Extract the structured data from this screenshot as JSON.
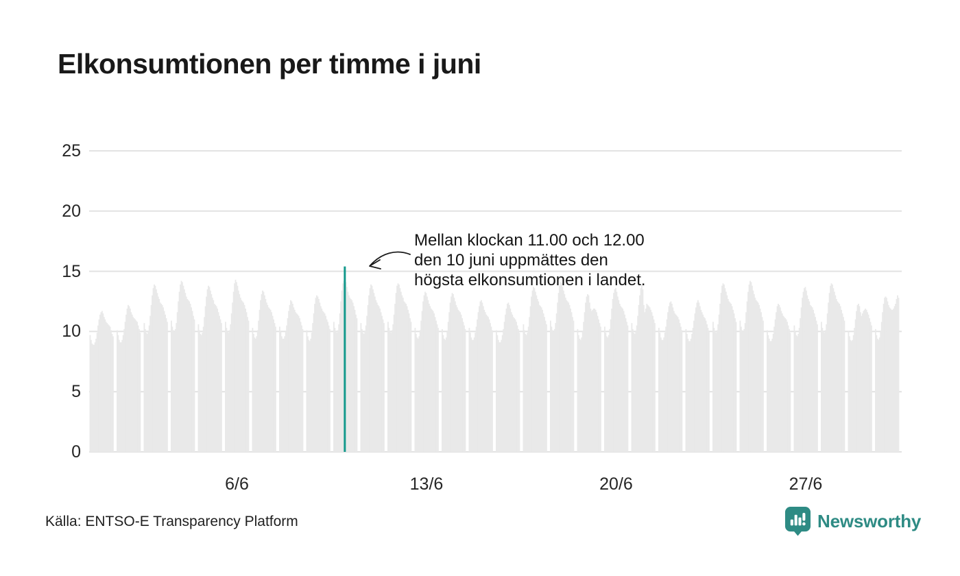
{
  "title": "Elkonsumtionen per timme i juni",
  "annotation": {
    "lines": [
      "Mellan klockan 11.00 och 12.00",
      "den 10 juni uppmättes den",
      "högsta elkonsumtionen i landet."
    ]
  },
  "source": "Källa: ENTSO-E Transparency Platform",
  "brand": {
    "name": "Newsworthy"
  },
  "colors": {
    "bar": "#e9e9e9",
    "grid": "#e2e2e2",
    "highlight": "#13998c",
    "brand_teal": "#2e8b84",
    "text": "#1a1a1a"
  },
  "chart_data": {
    "type": "bar",
    "title": "Elkonsumtionen per timme i juni",
    "xlabel": "",
    "ylabel": "",
    "ylim": [
      0,
      25
    ],
    "y_ticks": [
      0,
      5,
      10,
      15,
      20,
      25
    ],
    "x_ticks": [
      {
        "label": "6/6",
        "day": 6
      },
      {
        "label": "13/6",
        "day": 13
      },
      {
        "label": "20/6",
        "day": 20
      },
      {
        "label": "27/6",
        "day": 27
      }
    ],
    "n_days": 30,
    "hours_per_day": 24,
    "grid": true,
    "legend": false,
    "highlight": {
      "date": "10/6",
      "hour_index": 11,
      "day_index": 9,
      "hour_label": "11.00–12.00",
      "value": 15.4
    },
    "days": [
      {
        "date": "1/6",
        "values": [
          9.7,
          9.3,
          9.0,
          8.9,
          8.9,
          9.1,
          9.4,
          9.9,
          10.5,
          11.0,
          11.4,
          11.6,
          11.7,
          11.5,
          11.2,
          11.0,
          10.8,
          10.7,
          10.6,
          10.5,
          10.4,
          10.1,
          9.8,
          9.6
        ]
      },
      {
        "date": "2/6",
        "values": [
          10.1,
          9.7,
          9.3,
          9.1,
          9.1,
          9.3,
          9.7,
          10.2,
          10.8,
          11.4,
          11.9,
          12.2,
          12.1,
          11.9,
          11.6,
          11.4,
          11.2,
          11.1,
          11.0,
          10.9,
          10.8,
          10.5,
          10.2,
          9.9
        ]
      },
      {
        "date": "3/6",
        "values": [
          10.7,
          10.2,
          9.9,
          9.8,
          10.0,
          10.5,
          11.3,
          12.2,
          13.0,
          13.6,
          13.9,
          13.8,
          13.5,
          13.2,
          12.9,
          12.7,
          12.4,
          12.3,
          12.2,
          12.0,
          11.7,
          11.4,
          11.1,
          10.8
        ]
      },
      {
        "date": "4/6",
        "values": [
          10.9,
          10.4,
          10.1,
          10.0,
          10.2,
          10.7,
          11.6,
          12.5,
          13.3,
          13.9,
          14.2,
          14.1,
          13.8,
          13.5,
          13.2,
          12.9,
          12.7,
          12.6,
          12.5,
          12.3,
          12.0,
          11.7,
          11.3,
          11.0
        ]
      },
      {
        "date": "5/6",
        "values": [
          10.6,
          10.1,
          9.8,
          9.7,
          9.9,
          10.4,
          11.2,
          12.1,
          12.9,
          13.5,
          13.8,
          13.7,
          13.4,
          13.1,
          12.8,
          12.6,
          12.3,
          12.2,
          12.1,
          11.9,
          11.6,
          11.3,
          11.0,
          10.7
        ]
      },
      {
        "date": "6/6",
        "values": [
          10.8,
          10.3,
          10.0,
          9.9,
          10.1,
          10.6,
          11.5,
          12.4,
          13.3,
          14.0,
          14.3,
          14.1,
          13.8,
          13.4,
          13.1,
          12.8,
          12.6,
          12.5,
          12.4,
          12.2,
          11.9,
          11.6,
          11.2,
          10.9
        ]
      },
      {
        "date": "7/6",
        "values": [
          10.3,
          9.8,
          9.5,
          9.4,
          9.6,
          10.1,
          10.9,
          11.8,
          12.6,
          13.1,
          13.4,
          13.3,
          13.0,
          12.7,
          12.4,
          12.2,
          12.0,
          11.9,
          11.8,
          11.6,
          11.3,
          11.0,
          10.7,
          10.4
        ]
      },
      {
        "date": "8/6",
        "values": [
          10.4,
          10.0,
          9.6,
          9.4,
          9.4,
          9.6,
          10.0,
          10.5,
          11.1,
          11.7,
          12.2,
          12.6,
          12.5,
          12.3,
          12.0,
          11.8,
          11.6,
          11.5,
          11.4,
          11.3,
          11.1,
          10.8,
          10.5,
          10.2
        ]
      },
      {
        "date": "9/6",
        "values": [
          10.1,
          9.6,
          9.3,
          9.2,
          9.4,
          9.9,
          10.7,
          11.5,
          12.3,
          12.8,
          13.0,
          12.9,
          12.7,
          12.4,
          12.1,
          11.9,
          11.7,
          11.6,
          11.5,
          11.3,
          11.0,
          10.8,
          10.5,
          10.2
        ]
      },
      {
        "date": "10/6",
        "values": [
          10.8,
          10.3,
          10.0,
          9.9,
          10.1,
          10.6,
          11.5,
          12.5,
          13.4,
          14.0,
          14.2,
          15.4,
          14.1,
          13.7,
          13.3,
          13.0,
          12.8,
          12.7,
          12.6,
          12.4,
          12.1,
          11.8,
          11.4,
          11.1
        ]
      },
      {
        "date": "11/6",
        "values": [
          10.7,
          10.2,
          9.9,
          9.8,
          10.0,
          10.5,
          11.3,
          12.2,
          13.0,
          13.6,
          13.9,
          13.8,
          13.5,
          13.2,
          12.9,
          12.6,
          12.4,
          12.2,
          12.1,
          11.9,
          11.6,
          11.3,
          11.0,
          10.7
        ]
      },
      {
        "date": "12/6",
        "values": [
          10.8,
          10.3,
          10.0,
          9.9,
          10.1,
          10.6,
          11.4,
          12.3,
          13.2,
          13.8,
          14.0,
          13.9,
          13.6,
          13.3,
          13.0,
          12.8,
          12.5,
          12.4,
          12.3,
          12.1,
          11.8,
          11.5,
          11.1,
          10.8
        ]
      },
      {
        "date": "13/6",
        "values": [
          10.3,
          9.8,
          9.5,
          9.4,
          9.6,
          10.1,
          10.9,
          11.7,
          12.5,
          13.0,
          13.3,
          13.2,
          12.9,
          12.6,
          12.3,
          12.1,
          11.9,
          11.8,
          11.7,
          11.5,
          11.2,
          10.9,
          10.6,
          10.3
        ]
      },
      {
        "date": "14/6",
        "values": [
          10.2,
          9.7,
          9.4,
          9.3,
          9.5,
          10.0,
          10.8,
          11.6,
          12.4,
          12.9,
          13.2,
          13.1,
          12.8,
          12.5,
          12.2,
          12.0,
          11.8,
          11.7,
          11.6,
          11.4,
          11.1,
          10.8,
          10.5,
          10.2
        ]
      },
      {
        "date": "15/6",
        "values": [
          10.3,
          9.9,
          9.5,
          9.3,
          9.3,
          9.5,
          9.9,
          10.4,
          11.0,
          11.6,
          12.1,
          12.5,
          12.6,
          12.4,
          12.1,
          11.8,
          11.6,
          11.4,
          11.3,
          11.2,
          11.0,
          10.7,
          10.4,
          10.1
        ]
      },
      {
        "date": "16/6",
        "values": [
          10.1,
          9.7,
          9.3,
          9.1,
          9.1,
          9.3,
          9.7,
          10.2,
          10.8,
          11.4,
          11.9,
          12.3,
          12.4,
          12.2,
          11.9,
          11.6,
          11.4,
          11.2,
          11.1,
          11.0,
          10.8,
          10.5,
          10.2,
          9.9
        ]
      },
      {
        "date": "17/6",
        "values": [
          10.6,
          10.1,
          9.8,
          9.7,
          9.9,
          10.4,
          11.2,
          12.1,
          12.9,
          13.4,
          13.7,
          13.6,
          13.3,
          13.0,
          12.7,
          12.5,
          12.2,
          12.1,
          12.0,
          11.8,
          11.5,
          11.2,
          10.9,
          10.6
        ]
      },
      {
        "date": "18/6",
        "values": [
          10.9,
          10.4,
          10.1,
          10.0,
          10.2,
          10.7,
          11.5,
          12.4,
          13.2,
          13.8,
          14.1,
          14.0,
          13.7,
          13.4,
          13.1,
          12.8,
          12.6,
          12.5,
          12.4,
          12.2,
          11.9,
          11.6,
          11.2,
          10.9
        ]
      },
      {
        "date": "19/6",
        "values": [
          10.2,
          9.7,
          9.4,
          9.3,
          9.5,
          10.0,
          10.8,
          11.6,
          12.4,
          12.9,
          13.1,
          13.0,
          12.4,
          11.9,
          11.7,
          11.8,
          11.9,
          11.9,
          11.8,
          11.6,
          11.3,
          11.0,
          10.7,
          10.4
        ]
      },
      {
        "date": "20/6",
        "values": [
          10.4,
          9.9,
          9.6,
          9.5,
          9.7,
          10.2,
          11.0,
          11.9,
          12.7,
          13.2,
          13.5,
          13.6,
          13.3,
          12.9,
          12.6,
          12.3,
          12.1,
          12.0,
          11.9,
          11.7,
          11.4,
          11.1,
          10.8,
          10.5
        ]
      },
      {
        "date": "21/6",
        "values": [
          10.7,
          10.2,
          9.9,
          9.8,
          10.0,
          10.5,
          11.3,
          12.2,
          13.0,
          13.6,
          13.9,
          13.5,
          12.2,
          11.6,
          11.9,
          12.3,
          12.2,
          12.1,
          12.0,
          11.8,
          11.6,
          11.3,
          11.0,
          10.7
        ]
      },
      {
        "date": "22/6",
        "values": [
          10.3,
          9.9,
          9.5,
          9.3,
          9.3,
          9.5,
          9.9,
          10.4,
          11.0,
          11.6,
          12.1,
          12.4,
          12.5,
          12.3,
          12.0,
          11.7,
          11.5,
          11.4,
          11.3,
          11.2,
          11.0,
          10.7,
          10.4,
          10.1
        ]
      },
      {
        "date": "23/6",
        "values": [
          10.2,
          9.8,
          9.4,
          9.2,
          9.2,
          9.4,
          9.8,
          10.3,
          10.9,
          11.5,
          12.0,
          12.4,
          12.6,
          12.4,
          12.1,
          11.8,
          11.6,
          11.4,
          11.2,
          11.1,
          10.9,
          10.6,
          10.3,
          10.0
        ]
      },
      {
        "date": "24/6",
        "values": [
          10.8,
          10.3,
          10.0,
          9.9,
          10.1,
          10.6,
          11.4,
          12.3,
          13.2,
          13.8,
          14.0,
          13.9,
          13.6,
          13.3,
          13.0,
          12.7,
          12.5,
          12.4,
          12.3,
          12.1,
          11.8,
          11.5,
          11.1,
          10.8
        ]
      },
      {
        "date": "25/6",
        "values": [
          10.9,
          10.4,
          10.1,
          10.0,
          10.2,
          10.7,
          11.6,
          12.5,
          13.3,
          13.9,
          14.2,
          14.1,
          13.8,
          13.4,
          13.1,
          12.8,
          12.6,
          12.5,
          12.4,
          12.2,
          11.9,
          11.6,
          11.2,
          10.9
        ]
      },
      {
        "date": "26/6",
        "values": [
          10.1,
          9.7,
          9.4,
          9.2,
          9.2,
          9.4,
          9.8,
          10.4,
          11.0,
          11.6,
          12.1,
          12.3,
          12.2,
          12.0,
          11.7,
          11.5,
          11.3,
          11.2,
          11.1,
          11.0,
          10.8,
          10.5,
          10.2,
          9.9
        ]
      },
      {
        "date": "27/6",
        "values": [
          10.5,
          10.0,
          9.7,
          9.6,
          9.8,
          10.3,
          11.1,
          12.0,
          12.8,
          13.3,
          13.6,
          13.7,
          13.4,
          13.0,
          12.7,
          12.5,
          12.2,
          12.1,
          12.0,
          11.8,
          11.5,
          11.2,
          10.9,
          10.6
        ]
      },
      {
        "date": "28/6",
        "values": [
          10.8,
          10.3,
          10.0,
          9.9,
          10.1,
          10.6,
          11.5,
          12.4,
          13.2,
          13.8,
          14.0,
          13.9,
          13.6,
          13.3,
          13.0,
          12.7,
          12.5,
          12.4,
          12.3,
          12.1,
          11.8,
          11.5,
          11.2,
          10.9
        ]
      },
      {
        "date": "29/6",
        "values": [
          10.0,
          9.6,
          9.3,
          9.2,
          9.3,
          9.7,
          10.3,
          11.0,
          11.7,
          12.2,
          12.3,
          12.1,
          11.6,
          11.3,
          11.5,
          11.7,
          11.8,
          11.9,
          11.8,
          11.6,
          11.4,
          11.1,
          10.8,
          10.5
        ]
      },
      {
        "date": "30/6",
        "values": [
          10.2,
          9.7,
          9.4,
          9.3,
          9.5,
          10.0,
          10.8,
          11.6,
          12.3,
          12.8,
          12.9,
          12.8,
          12.5,
          12.2,
          12.0,
          11.9,
          11.8,
          11.8,
          11.9,
          12.1,
          12.3,
          12.7,
          13.0,
          12.8
        ]
      }
    ]
  }
}
